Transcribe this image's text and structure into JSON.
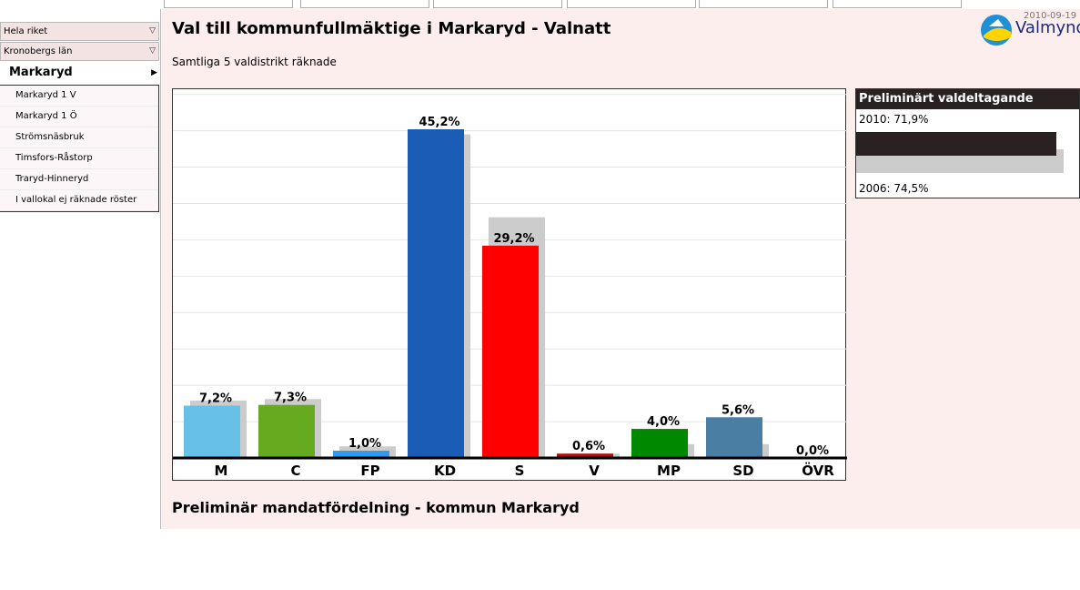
{
  "sidebar": {
    "top_items": [
      "Hela riket",
      "Kronobergs län"
    ],
    "current": "Markaryd",
    "districts": [
      "Markaryd 1 V",
      "Markaryd 1 Ö",
      "Strömsnäsbruk",
      "Timsfors-Råstorp",
      "Traryd-Hinneryd",
      "I vallokal ej räknade röster"
    ]
  },
  "header": {
    "title": "Val till kommunfullmäktige i Markaryd - Valnatt",
    "subtitle": "Samtliga 5 valdistrikt räknade",
    "date": "2010-09-19",
    "logo_text": "Valmynd"
  },
  "chart_data": {
    "type": "bar",
    "categories": [
      "M",
      "C",
      "FP",
      "KD",
      "S",
      "V",
      "MP",
      "SD",
      "ÖVR"
    ],
    "series": [
      {
        "values": [
          7.2,
          7.3,
          1.0,
          45.2,
          29.2,
          0.6,
          4.0,
          5.6,
          0.0
        ]
      },
      {
        "values": [
          7.9,
          8.1,
          1.6,
          44.5,
          33.1,
          0.6,
          1.9,
          1.9,
          0.0
        ]
      }
    ],
    "value_labels": [
      "7,2%",
      "7,3%",
      "1,0%",
      "45,2%",
      "29,2%",
      "0,6%",
      "4,0%",
      "5,6%",
      "0,0%"
    ],
    "colors": [
      "#66c0e8",
      "#66ab1f",
      "#3399ee",
      "#1a5cb6",
      "#ff0000",
      "#aa1111",
      "#008800",
      "#4a7fa3",
      "#333333"
    ],
    "shadow_color": "#cccccc",
    "ylim": [
      0,
      50
    ],
    "grid": true
  },
  "turnout": {
    "title": "Preliminärt valdeltagande",
    "current_label": "2010: 71,9%",
    "current_value": 71.9,
    "previous_label": "2006: 74,5%",
    "previous_value": 74.5
  },
  "mandat": {
    "title": "Preliminär mandatfördelning - kommun Markaryd"
  }
}
